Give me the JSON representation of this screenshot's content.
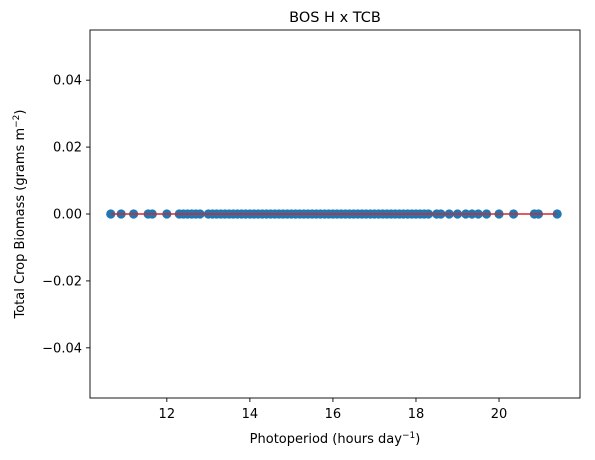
{
  "chart_data": {
    "type": "scatter",
    "title": "BOS H x TCB",
    "xlabel": "Photoperiod (hours day",
    "xlabel_sup": "−1",
    "xlabel_close": ")",
    "ylabel": "Total Crop Biomass (grams m",
    "ylabel_sup": "−2",
    "ylabel_close": ")",
    "xlim": [
      10.15,
      21.95
    ],
    "ylim": [
      -0.055,
      0.055
    ],
    "xticks": [
      12,
      14,
      16,
      18,
      20
    ],
    "xtick_labels": [
      "12",
      "14",
      "16",
      "18",
      "20"
    ],
    "yticks": [
      -0.04,
      -0.02,
      0.0,
      0.02,
      0.04
    ],
    "ytick_labels": [
      "−0.04",
      "−0.02",
      "0.00",
      "0.02",
      "0.04"
    ],
    "grid": false,
    "colors": {
      "points": "#1f77b4",
      "fit_line": "#d62728",
      "axes": "#000000"
    },
    "series": [
      {
        "x": [
          10.65,
          10.9,
          11.2,
          11.55,
          11.65,
          12.0,
          12.3,
          12.4,
          12.5,
          12.6,
          12.7,
          12.8,
          13.0,
          13.1,
          13.2,
          13.3,
          13.4,
          13.5,
          13.6,
          13.7,
          13.8,
          13.9,
          14.0,
          14.1,
          14.2,
          14.3,
          14.4,
          14.5,
          14.6,
          14.7,
          14.8,
          14.9,
          15.0,
          15.1,
          15.2,
          15.3,
          15.4,
          15.5,
          15.6,
          15.7,
          15.8,
          15.9,
          16.0,
          16.1,
          16.2,
          16.3,
          16.4,
          16.5,
          16.6,
          16.7,
          16.8,
          16.9,
          17.0,
          17.1,
          17.2,
          17.3,
          17.4,
          17.5,
          17.6,
          17.7,
          17.8,
          17.9,
          18.0,
          18.1,
          18.2,
          18.3,
          18.5,
          18.6,
          18.8,
          19.0,
          19.2,
          19.35,
          19.5,
          19.7,
          20.0,
          20.35,
          20.85,
          20.95,
          21.4
        ],
        "y": [
          0,
          0,
          0,
          0,
          0,
          0,
          0,
          0,
          0,
          0,
          0,
          0,
          0,
          0,
          0,
          0,
          0,
          0,
          0,
          0,
          0,
          0,
          0,
          0,
          0,
          0,
          0,
          0,
          0,
          0,
          0,
          0,
          0,
          0,
          0,
          0,
          0,
          0,
          0,
          0,
          0,
          0,
          0,
          0,
          0,
          0,
          0,
          0,
          0,
          0,
          0,
          0,
          0,
          0,
          0,
          0,
          0,
          0,
          0,
          0,
          0,
          0,
          0,
          0,
          0,
          0,
          0,
          0,
          0,
          0,
          0,
          0,
          0,
          0,
          0,
          0,
          0,
          0,
          0
        ]
      }
    ],
    "fit_line": {
      "x": [
        10.65,
        21.4
      ],
      "y": [
        0,
        0
      ]
    }
  }
}
